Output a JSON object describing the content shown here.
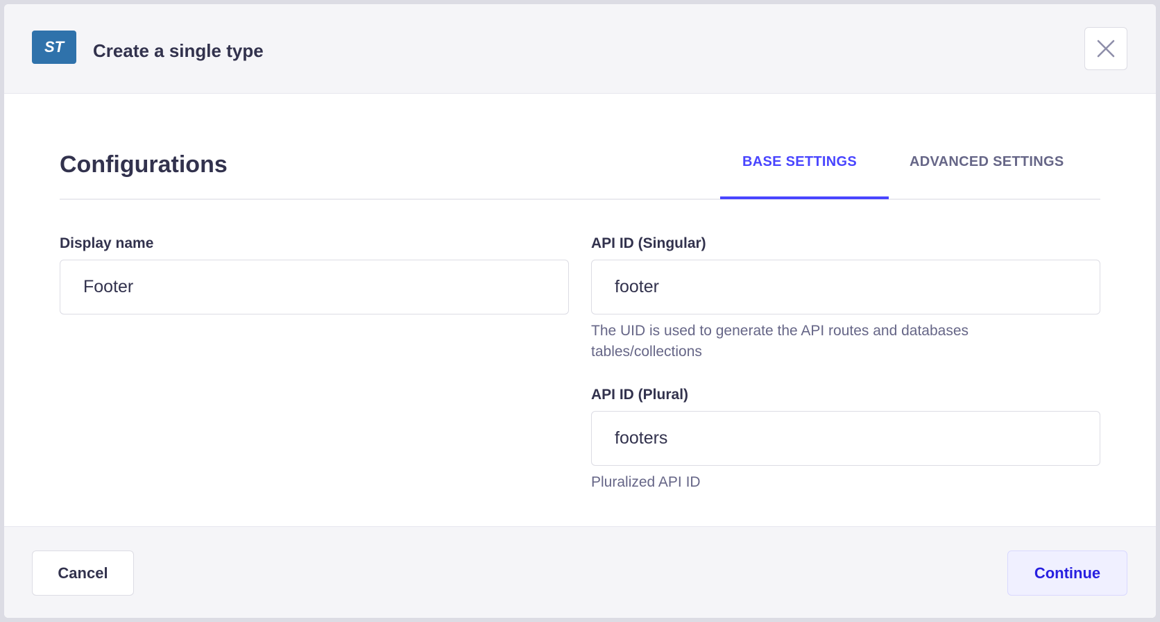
{
  "header": {
    "badge": "ST",
    "title": "Create a single type",
    "close_icon": "close-icon"
  },
  "section": {
    "title": "Configurations"
  },
  "tabs": [
    {
      "label": "BASE SETTINGS",
      "active": true
    },
    {
      "label": "ADVANCED SETTINGS",
      "active": false
    }
  ],
  "fields": {
    "display_name": {
      "label": "Display name",
      "value": "Footer"
    },
    "api_singular": {
      "label": "API ID (Singular)",
      "value": "footer",
      "hint": "The UID is used to generate the API routes and databases tables/collections"
    },
    "api_plural": {
      "label": "API ID (Plural)",
      "value": "footers",
      "hint": "Pluralized API ID"
    }
  },
  "footer": {
    "cancel": "Cancel",
    "continue": "Continue"
  },
  "colors": {
    "accent": "#4945ff",
    "badge": "#2f72ab",
    "text": "#32324d"
  }
}
